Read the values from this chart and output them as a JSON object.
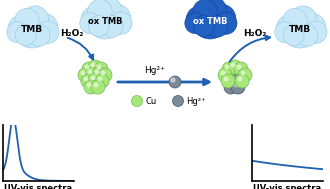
{
  "background_color": "#ffffff",
  "cu_ball_color": "#a8e878",
  "cu_ball_edge": "#70bb50",
  "hg_ball_color": "#7a8a96",
  "hg_ball_edge": "#445566",
  "arrow_color": "#2060b0",
  "curve_color": "#2060b0",
  "label_tmb": "TMB",
  "label_oxtmb": "ox TMB",
  "label_h2o2": "H₂O₂",
  "label_hg2plus": "Hg²⁺",
  "label_cu": "Cu",
  "label_uvvis": "UV-vis spectra",
  "figsize": [
    3.3,
    1.89
  ],
  "dpi": 100,
  "cloud_light": "#c8e8f8",
  "cloud_light_edge": "#90c8e8",
  "cloud_dark": "#2060c0",
  "cloud_dark_edge": "#1040a0"
}
